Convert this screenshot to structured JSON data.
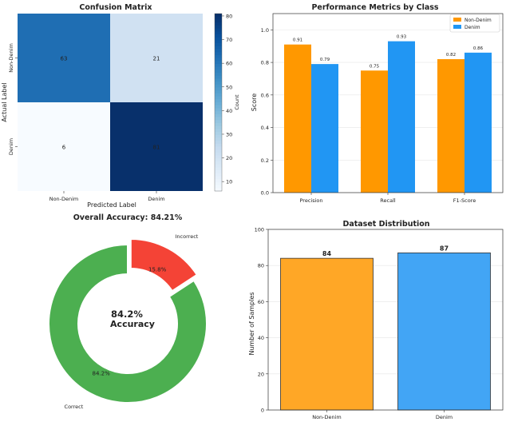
{
  "chart_data": [
    {
      "type": "heatmap",
      "title": "Confusion Matrix",
      "xlabel": "Predicted Label",
      "ylabel": "Actual Label",
      "x_categories": [
        "Non-Denim",
        "Denim"
      ],
      "y_categories": [
        "Non-Denim",
        "Denim"
      ],
      "values": [
        [
          63,
          21
        ],
        [
          6,
          81
        ]
      ],
      "colorbar": {
        "label": "Count",
        "range": [
          6,
          81
        ],
        "ticks": [
          10,
          20,
          30,
          40,
          50,
          60,
          70,
          80
        ],
        "colormap": "Blues"
      }
    },
    {
      "type": "bar",
      "title": "Performance Metrics by Class",
      "categories": [
        "Precision",
        "Recall",
        "F1-Score"
      ],
      "series": [
        {
          "name": "Non-Denim",
          "values": [
            0.91,
            0.75,
            0.82
          ],
          "color": "#ff9800"
        },
        {
          "name": "Denim",
          "values": [
            0.79,
            0.93,
            0.86
          ],
          "color": "#2196f3"
        }
      ],
      "xlabel": "",
      "ylabel": "Score",
      "ylim": [
        0,
        1.1
      ],
      "yticks": [
        0.0,
        0.2,
        0.4,
        0.6,
        0.8,
        1.0
      ],
      "ytick_labels": [
        "0.0",
        "0.2",
        "0.4",
        "0.6",
        "0.8",
        "1.0"
      ],
      "data_labels": [
        "0.91",
        "0.75",
        "0.82",
        "0.79",
        "0.93",
        "0.86"
      ],
      "legend_position": "top-right",
      "grid": true
    },
    {
      "type": "pie",
      "style": "donut",
      "title": "Overall Accuracy: 84.21%",
      "labels": [
        "Correct",
        "Incorrect"
      ],
      "values": [
        84.2,
        15.8
      ],
      "pct_labels": [
        "84.2%",
        "15.8%"
      ],
      "colors": [
        "#4caf50",
        "#f44336"
      ],
      "center_text": [
        "84.2%",
        "Accuracy"
      ],
      "exploded": "Incorrect"
    },
    {
      "type": "bar",
      "title": "Dataset Distribution",
      "categories": [
        "Non-Denim",
        "Denim"
      ],
      "values": [
        84,
        87
      ],
      "value_labels": [
        "84",
        "87"
      ],
      "colors": [
        "#ffa726",
        "#42a5f5"
      ],
      "xlabel": "",
      "ylabel": "Number of Samples",
      "ylim": [
        0,
        100
      ],
      "yticks": [
        0,
        20,
        40,
        60,
        80,
        100
      ],
      "grid": true
    }
  ]
}
